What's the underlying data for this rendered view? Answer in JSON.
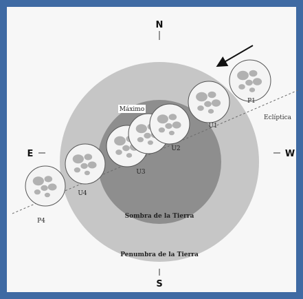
{
  "colors": {
    "frame": "#3f6aa3",
    "background": "#f7f7f7",
    "penumbra": "#c6c6c6",
    "umbra": "#8e8e8e",
    "moon_fill": "#f4f4f4",
    "moon_maria": "#7a7a7a",
    "ecliptic": "#6a6a6a",
    "arrow": "#111111"
  },
  "directions": {
    "north": "N",
    "south": "S",
    "east": "E",
    "west": "W"
  },
  "regions": {
    "umbra_label": "Sombra de la Tierra",
    "penumbra_label": "Penumbra de la Tierra"
  },
  "ecliptic_label": "Eclíptica",
  "maximum_label": "Máximo",
  "moons": [
    {
      "label": "P1"
    },
    {
      "label": "U1"
    },
    {
      "label": "U2"
    },
    {
      "label": "U3"
    },
    {
      "label": "U4"
    },
    {
      "label": "P4"
    }
  ],
  "arrow_icon": "motion-arrow-icon"
}
